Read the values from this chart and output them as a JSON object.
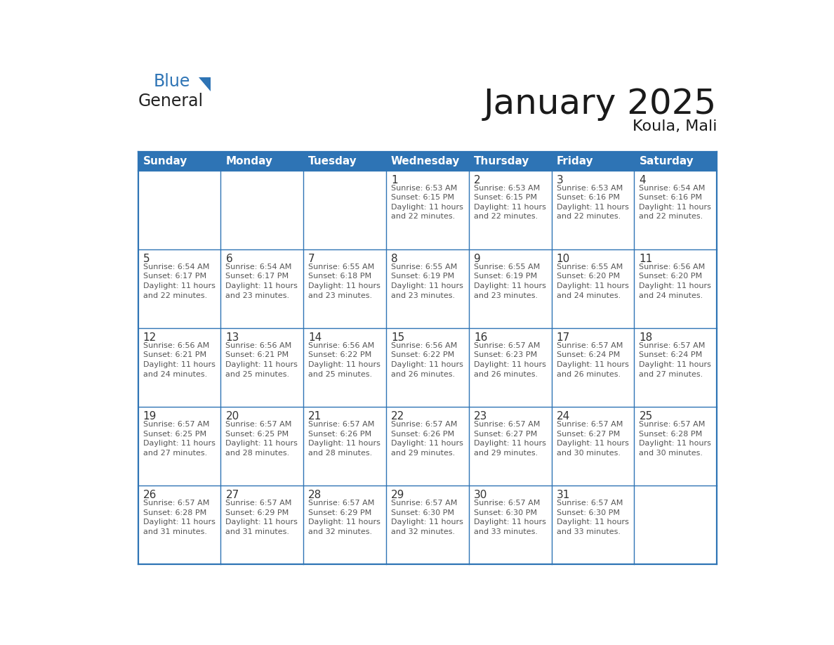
{
  "title": "January 2025",
  "subtitle": "Koula, Mali",
  "days_of_week": [
    "Sunday",
    "Monday",
    "Tuesday",
    "Wednesday",
    "Thursday",
    "Friday",
    "Saturday"
  ],
  "header_bg": "#2E74B5",
  "header_text": "#FFFFFF",
  "border_color": "#2E74B5",
  "text_color": "#555555",
  "day_num_color": "#333333",
  "logo_general_color": "#222222",
  "logo_blue_color": "#2E74B5",
  "weeks": [
    [
      {
        "day": null,
        "text": ""
      },
      {
        "day": null,
        "text": ""
      },
      {
        "day": null,
        "text": ""
      },
      {
        "day": 1,
        "text": "Sunrise: 6:53 AM\nSunset: 6:15 PM\nDaylight: 11 hours\nand 22 minutes."
      },
      {
        "day": 2,
        "text": "Sunrise: 6:53 AM\nSunset: 6:15 PM\nDaylight: 11 hours\nand 22 minutes."
      },
      {
        "day": 3,
        "text": "Sunrise: 6:53 AM\nSunset: 6:16 PM\nDaylight: 11 hours\nand 22 minutes."
      },
      {
        "day": 4,
        "text": "Sunrise: 6:54 AM\nSunset: 6:16 PM\nDaylight: 11 hours\nand 22 minutes."
      }
    ],
    [
      {
        "day": 5,
        "text": "Sunrise: 6:54 AM\nSunset: 6:17 PM\nDaylight: 11 hours\nand 22 minutes."
      },
      {
        "day": 6,
        "text": "Sunrise: 6:54 AM\nSunset: 6:17 PM\nDaylight: 11 hours\nand 23 minutes."
      },
      {
        "day": 7,
        "text": "Sunrise: 6:55 AM\nSunset: 6:18 PM\nDaylight: 11 hours\nand 23 minutes."
      },
      {
        "day": 8,
        "text": "Sunrise: 6:55 AM\nSunset: 6:19 PM\nDaylight: 11 hours\nand 23 minutes."
      },
      {
        "day": 9,
        "text": "Sunrise: 6:55 AM\nSunset: 6:19 PM\nDaylight: 11 hours\nand 23 minutes."
      },
      {
        "day": 10,
        "text": "Sunrise: 6:55 AM\nSunset: 6:20 PM\nDaylight: 11 hours\nand 24 minutes."
      },
      {
        "day": 11,
        "text": "Sunrise: 6:56 AM\nSunset: 6:20 PM\nDaylight: 11 hours\nand 24 minutes."
      }
    ],
    [
      {
        "day": 12,
        "text": "Sunrise: 6:56 AM\nSunset: 6:21 PM\nDaylight: 11 hours\nand 24 minutes."
      },
      {
        "day": 13,
        "text": "Sunrise: 6:56 AM\nSunset: 6:21 PM\nDaylight: 11 hours\nand 25 minutes."
      },
      {
        "day": 14,
        "text": "Sunrise: 6:56 AM\nSunset: 6:22 PM\nDaylight: 11 hours\nand 25 minutes."
      },
      {
        "day": 15,
        "text": "Sunrise: 6:56 AM\nSunset: 6:22 PM\nDaylight: 11 hours\nand 26 minutes."
      },
      {
        "day": 16,
        "text": "Sunrise: 6:57 AM\nSunset: 6:23 PM\nDaylight: 11 hours\nand 26 minutes."
      },
      {
        "day": 17,
        "text": "Sunrise: 6:57 AM\nSunset: 6:24 PM\nDaylight: 11 hours\nand 26 minutes."
      },
      {
        "day": 18,
        "text": "Sunrise: 6:57 AM\nSunset: 6:24 PM\nDaylight: 11 hours\nand 27 minutes."
      }
    ],
    [
      {
        "day": 19,
        "text": "Sunrise: 6:57 AM\nSunset: 6:25 PM\nDaylight: 11 hours\nand 27 minutes."
      },
      {
        "day": 20,
        "text": "Sunrise: 6:57 AM\nSunset: 6:25 PM\nDaylight: 11 hours\nand 28 minutes."
      },
      {
        "day": 21,
        "text": "Sunrise: 6:57 AM\nSunset: 6:26 PM\nDaylight: 11 hours\nand 28 minutes."
      },
      {
        "day": 22,
        "text": "Sunrise: 6:57 AM\nSunset: 6:26 PM\nDaylight: 11 hours\nand 29 minutes."
      },
      {
        "day": 23,
        "text": "Sunrise: 6:57 AM\nSunset: 6:27 PM\nDaylight: 11 hours\nand 29 minutes."
      },
      {
        "day": 24,
        "text": "Sunrise: 6:57 AM\nSunset: 6:27 PM\nDaylight: 11 hours\nand 30 minutes."
      },
      {
        "day": 25,
        "text": "Sunrise: 6:57 AM\nSunset: 6:28 PM\nDaylight: 11 hours\nand 30 minutes."
      }
    ],
    [
      {
        "day": 26,
        "text": "Sunrise: 6:57 AM\nSunset: 6:28 PM\nDaylight: 11 hours\nand 31 minutes."
      },
      {
        "day": 27,
        "text": "Sunrise: 6:57 AM\nSunset: 6:29 PM\nDaylight: 11 hours\nand 31 minutes."
      },
      {
        "day": 28,
        "text": "Sunrise: 6:57 AM\nSunset: 6:29 PM\nDaylight: 11 hours\nand 32 minutes."
      },
      {
        "day": 29,
        "text": "Sunrise: 6:57 AM\nSunset: 6:30 PM\nDaylight: 11 hours\nand 32 minutes."
      },
      {
        "day": 30,
        "text": "Sunrise: 6:57 AM\nSunset: 6:30 PM\nDaylight: 11 hours\nand 33 minutes."
      },
      {
        "day": 31,
        "text": "Sunrise: 6:57 AM\nSunset: 6:30 PM\nDaylight: 11 hours\nand 33 minutes."
      },
      {
        "day": null,
        "text": ""
      }
    ]
  ]
}
